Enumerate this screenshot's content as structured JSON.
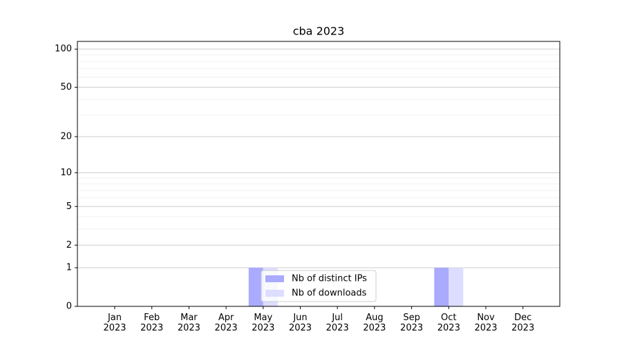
{
  "chart_data": {
    "type": "bar",
    "title": "cba 2023",
    "categories": [
      "Jan\n2023",
      "Feb\n2023",
      "Mar\n2023",
      "Apr\n2023",
      "May\n2023",
      "Jun\n2023",
      "Jul\n2023",
      "Aug\n2023",
      "Sep\n2023",
      "Oct\n2023",
      "Nov\n2023",
      "Dec\n2023"
    ],
    "series": [
      {
        "name": "Nb of distinct IPs",
        "color": "#aaaaff",
        "values": [
          0,
          0,
          0,
          0,
          1,
          0,
          0,
          0,
          0,
          1,
          0,
          0
        ]
      },
      {
        "name": "Nb of downloads",
        "color": "#ddddff",
        "values": [
          0,
          0,
          0,
          0,
          1,
          0,
          0,
          0,
          0,
          1,
          0,
          0
        ]
      }
    ],
    "yscale": "log1p",
    "ylim": [
      0,
      115
    ],
    "yticks": [
      0,
      1,
      2,
      5,
      10,
      20,
      50,
      100
    ],
    "yminor_ticks": [
      3,
      4,
      6,
      7,
      8,
      9,
      30,
      40,
      60,
      70,
      80,
      90
    ],
    "grid": true,
    "legend": "lower center"
  }
}
